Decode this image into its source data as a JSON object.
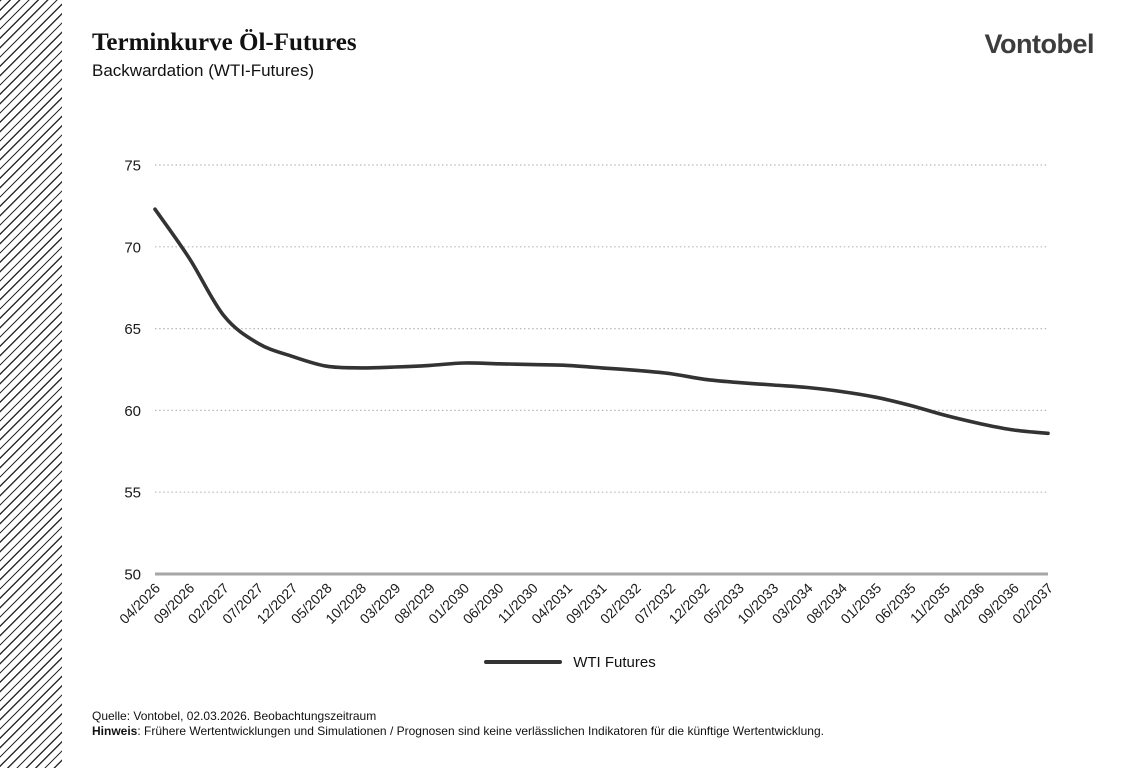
{
  "header": {
    "title": "Terminkurve Öl-Futures",
    "subtitle": "Backwardation (WTI-Futures)"
  },
  "logo": {
    "text": "Vontobel"
  },
  "chart_data": {
    "type": "line",
    "title": "Terminkurve Öl-Futures",
    "subtitle": "Backwardation (WTI-Futures)",
    "categories": [
      "04/2026",
      "09/2026",
      "02/2027",
      "07/2027",
      "12/2027",
      "05/2028",
      "10/2028",
      "03/2029",
      "08/2029",
      "01/2030",
      "06/2030",
      "11/2030",
      "04/2031",
      "09/2031",
      "02/2032",
      "07/2032",
      "12/2032",
      "05/2033",
      "10/2033",
      "03/2034",
      "08/2034",
      "01/2035",
      "06/2035",
      "11/2035",
      "04/2036",
      "09/2036",
      "02/2037"
    ],
    "series": [
      {
        "name": "WTI Futures",
        "color": "#333333",
        "values": [
          72.3,
          69.3,
          65.8,
          64.1,
          63.3,
          62.7,
          62.6,
          62.65,
          62.75,
          62.9,
          62.85,
          62.8,
          62.75,
          62.6,
          62.45,
          62.25,
          61.9,
          61.7,
          61.55,
          61.4,
          61.15,
          60.8,
          60.3,
          59.7,
          59.2,
          58.8,
          58.6
        ]
      }
    ],
    "xlabel": "",
    "ylabel": "",
    "ylim": [
      50,
      75
    ],
    "yticks": [
      50,
      55,
      60,
      65,
      70,
      75
    ],
    "grid": "horizontal-dotted",
    "legend_position": "bottom-center",
    "colors": {
      "line": "#333333",
      "axis_line": "#a6a6a6",
      "gridline": "#b8b8b8",
      "tick_text": "#1a1a1a"
    }
  },
  "legend": {
    "items": [
      {
        "label": "WTI Futures",
        "color": "#333333"
      }
    ]
  },
  "footer": {
    "source": "Quelle: Vontobel, 02.03.2026. Beobachtungszeitraum",
    "note_label": "Hinweis",
    "note_text": ": Frühere Wertentwicklungen und Simulationen / Prognosen sind keine verlässlichen Indikatoren für die künftige Wertentwicklung."
  }
}
